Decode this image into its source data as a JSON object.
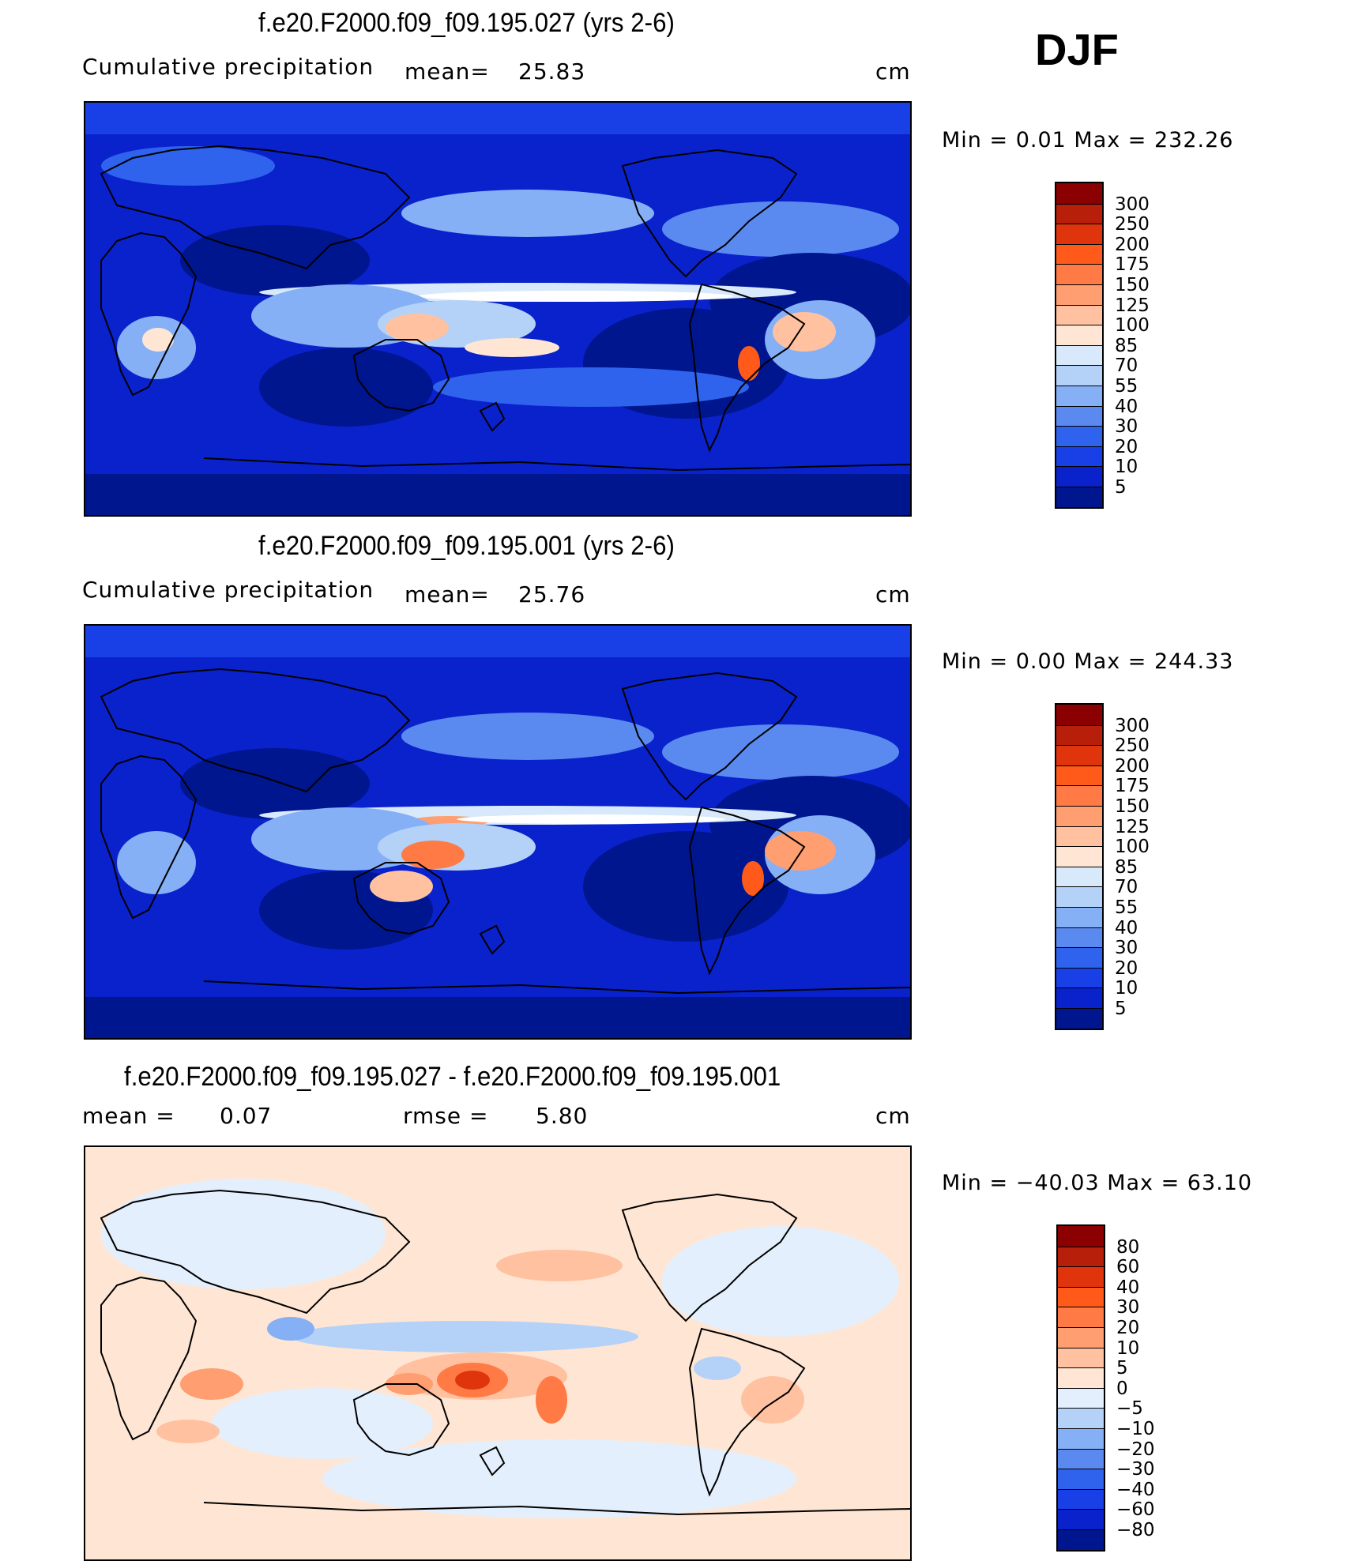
{
  "season": "DJF",
  "panels": [
    {
      "title": "f.e20.F2000.f09_f09.195.027 (yrs 2-6)",
      "left_label": "Cumulative precipitation",
      "stat1_label": "mean=",
      "stat1_value": "25.83",
      "stat2_label": "",
      "stat2_value": "",
      "units": "cm",
      "minmax": "Min =    0.01 Max = 232.26",
      "levels": [
        "300",
        "250",
        "200",
        "175",
        "150",
        "125",
        "100",
        "85",
        "70",
        "55",
        "40",
        "30",
        "20",
        "10",
        "5"
      ],
      "colors": [
        "#8b0000",
        "#b81f0a",
        "#e0340c",
        "#ff5a1a",
        "#ff7a45",
        "#ff9e70",
        "#ffc1a0",
        "#ffe6d4",
        "#d7e9fb",
        "#b4d2f8",
        "#86b0f6",
        "#5a8af0",
        "#2f63ee",
        "#1840e6",
        "#0a22cc",
        "#00168f"
      ]
    },
    {
      "title": "f.e20.F2000.f09_f09.195.001 (yrs 2-6)",
      "left_label": "Cumulative precipitation",
      "stat1_label": "mean=",
      "stat1_value": "25.76",
      "stat2_label": "",
      "stat2_value": "",
      "units": "cm",
      "minmax": "Min =    0.00 Max = 244.33",
      "levels": [
        "300",
        "250",
        "200",
        "175",
        "150",
        "125",
        "100",
        "85",
        "70",
        "55",
        "40",
        "30",
        "20",
        "10",
        "5"
      ],
      "colors": [
        "#8b0000",
        "#b81f0a",
        "#e0340c",
        "#ff5a1a",
        "#ff7a45",
        "#ff9e70",
        "#ffc1a0",
        "#ffe6d4",
        "#d7e9fb",
        "#b4d2f8",
        "#86b0f6",
        "#5a8af0",
        "#2f63ee",
        "#1840e6",
        "#0a22cc",
        "#00168f"
      ]
    },
    {
      "title": "f.e20.F2000.f09_f09.195.027 - f.e20.F2000.f09_f09.195.001",
      "left_label": "mean =",
      "stat1_label": "",
      "stat1_value": "0.07",
      "stat2_label": "rmse =",
      "stat2_value": "5.80",
      "units": "cm",
      "minmax": "Min = −40.03 Max =   63.10",
      "levels": [
        "80",
        "60",
        "40",
        "30",
        "20",
        "10",
        "5",
        "0",
        "−5",
        "−10",
        "−20",
        "−30",
        "−40",
        "−60",
        "−80"
      ],
      "colors": [
        "#8b0000",
        "#b81f0a",
        "#e0340c",
        "#ff5a1a",
        "#ff7a45",
        "#ff9e70",
        "#ffc1a0",
        "#ffe6d4",
        "#e3effc",
        "#b4d2f8",
        "#86b0f6",
        "#5a8af0",
        "#2f63ee",
        "#1840e6",
        "#0a22cc",
        "#00168f"
      ]
    }
  ],
  "chart_data": [
    {
      "type": "heatmap",
      "title": "f.e20.F2000.f09_f09.195.027 (yrs 2-6)",
      "variable": "Cumulative precipitation",
      "units": "cm",
      "mean": 25.83,
      "min": 0.01,
      "max": 232.26,
      "colorbar_levels": [
        5,
        10,
        20,
        30,
        40,
        55,
        70,
        85,
        100,
        125,
        150,
        175,
        200,
        250,
        300
      ]
    },
    {
      "type": "heatmap",
      "title": "f.e20.F2000.f09_f09.195.001 (yrs 2-6)",
      "variable": "Cumulative precipitation",
      "units": "cm",
      "mean": 25.76,
      "min": 0.0,
      "max": 244.33,
      "colorbar_levels": [
        5,
        10,
        20,
        30,
        40,
        55,
        70,
        85,
        100,
        125,
        150,
        175,
        200,
        250,
        300
      ]
    },
    {
      "type": "heatmap",
      "title": "f.e20.F2000.f09_f09.195.027 - f.e20.F2000.f09_f09.195.001",
      "units": "cm",
      "mean": 0.07,
      "rmse": 5.8,
      "min": -40.03,
      "max": 63.1,
      "colorbar_levels": [
        -80,
        -60,
        -40,
        -30,
        -20,
        -10,
        -5,
        0,
        5,
        10,
        20,
        30,
        40,
        60,
        80
      ]
    }
  ]
}
